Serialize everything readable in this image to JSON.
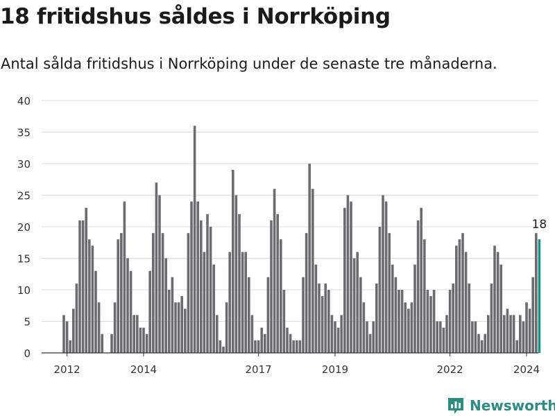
{
  "title": "18 fritidshus såldes i Norrköping",
  "subtitle": "Antal sålda fritidshus i Norrköping under de senaste tre månaderna.",
  "brand": {
    "name": "Newsworthy",
    "color": "#2c8c82"
  },
  "chart_data": {
    "type": "bar",
    "x_start": "2011-12",
    "frequency": "monthly",
    "values": [
      6,
      5,
      2,
      7,
      11,
      21,
      21,
      23,
      18,
      17,
      13,
      8,
      3,
      0,
      0,
      3,
      8,
      18,
      19,
      24,
      15,
      13,
      6,
      6,
      4,
      4,
      3,
      13,
      19,
      27,
      25,
      19,
      15,
      10,
      12,
      8,
      8,
      9,
      7,
      19,
      24,
      36,
      24,
      21,
      16,
      22,
      20,
      14,
      6,
      2,
      1,
      8,
      16,
      29,
      25,
      22,
      16,
      16,
      12,
      6,
      2,
      2,
      4,
      3,
      12,
      21,
      26,
      22,
      18,
      10,
      4,
      3,
      2,
      2,
      2,
      12,
      19,
      30,
      26,
      14,
      11,
      9,
      11,
      10,
      6,
      5,
      4,
      6,
      23,
      25,
      24,
      15,
      16,
      12,
      8,
      5,
      3,
      5,
      11,
      20,
      25,
      24,
      19,
      14,
      12,
      10,
      10,
      8,
      7,
      8,
      14,
      21,
      23,
      18,
      10,
      9,
      10,
      5,
      5,
      4,
      6,
      10,
      11,
      17,
      18,
      19,
      16,
      11,
      5,
      5,
      3,
      2,
      3,
      6,
      11,
      17,
      16,
      14,
      6,
      7,
      6,
      6,
      2,
      6,
      5,
      8,
      7,
      12,
      19,
      18
    ],
    "highlight": {
      "index": 149,
      "label": "18",
      "color": "#1a9487"
    },
    "bar_color": "#6c6b72",
    "yticks": [
      0,
      5,
      10,
      15,
      20,
      25,
      30,
      35,
      40
    ],
    "ylim": [
      0,
      40
    ],
    "xticks": [
      {
        "label": "2012",
        "index": 1
      },
      {
        "label": "2014",
        "index": 25
      },
      {
        "label": "2017",
        "index": 61
      },
      {
        "label": "2019",
        "index": 85
      },
      {
        "label": "2022",
        "index": 121
      },
      {
        "label": "2024",
        "index": 145
      }
    ],
    "grid": true
  }
}
